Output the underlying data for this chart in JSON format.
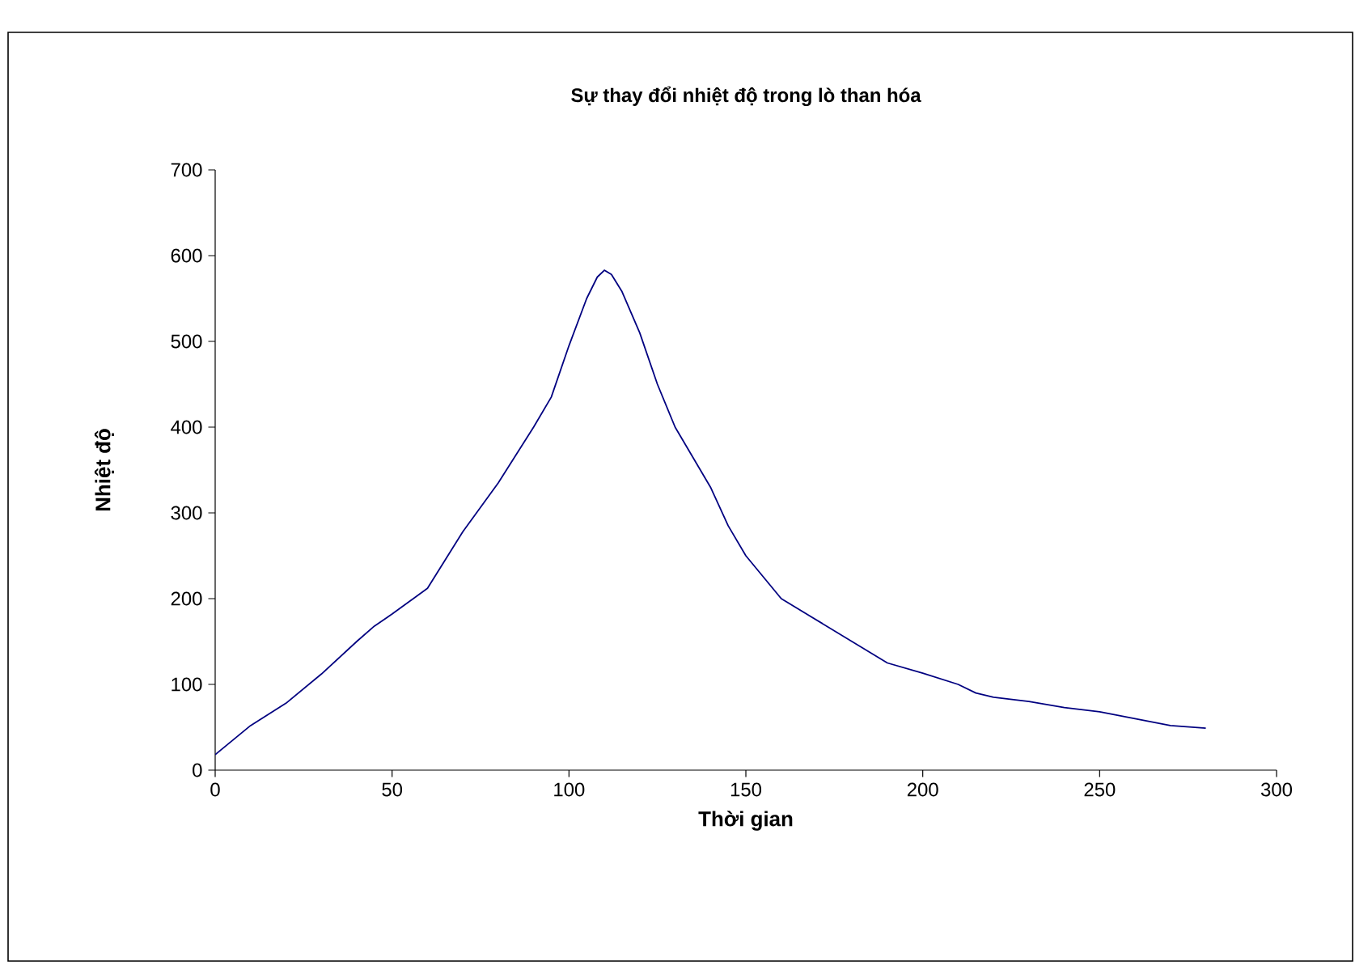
{
  "chart_data": {
    "type": "line",
    "title": "Sự thay đổi nhiệt độ trong lò than hóa",
    "xlabel": "Thời gian",
    "ylabel": "Nhiệt độ",
    "series": [
      {
        "color": "#000080",
        "x": [
          0,
          10,
          20,
          30,
          40,
          45,
          50,
          60,
          70,
          80,
          90,
          95,
          100,
          105,
          108,
          110,
          112,
          115,
          120,
          125,
          130,
          140,
          145,
          150,
          160,
          170,
          180,
          190,
          200,
          210,
          215,
          220,
          230,
          240,
          250,
          260,
          270,
          280
        ],
        "values": [
          18,
          52,
          78,
          112,
          150,
          168,
          182,
          212,
          278,
          335,
          400,
          435,
          495,
          550,
          575,
          583,
          578,
          558,
          510,
          450,
          400,
          330,
          285,
          250,
          200,
          175,
          150,
          125,
          113,
          100,
          90,
          85,
          80,
          73,
          68,
          60,
          52,
          49
        ]
      }
    ],
    "xlim": [
      0,
      300
    ],
    "ylim": [
      0,
      700
    ],
    "xticks": [
      0,
      50,
      100,
      150,
      200,
      250,
      300
    ],
    "yticks": [
      0,
      100,
      200,
      300,
      400,
      500,
      600,
      700
    ],
    "grid": false,
    "marker": "none",
    "line_style": "solid"
  }
}
